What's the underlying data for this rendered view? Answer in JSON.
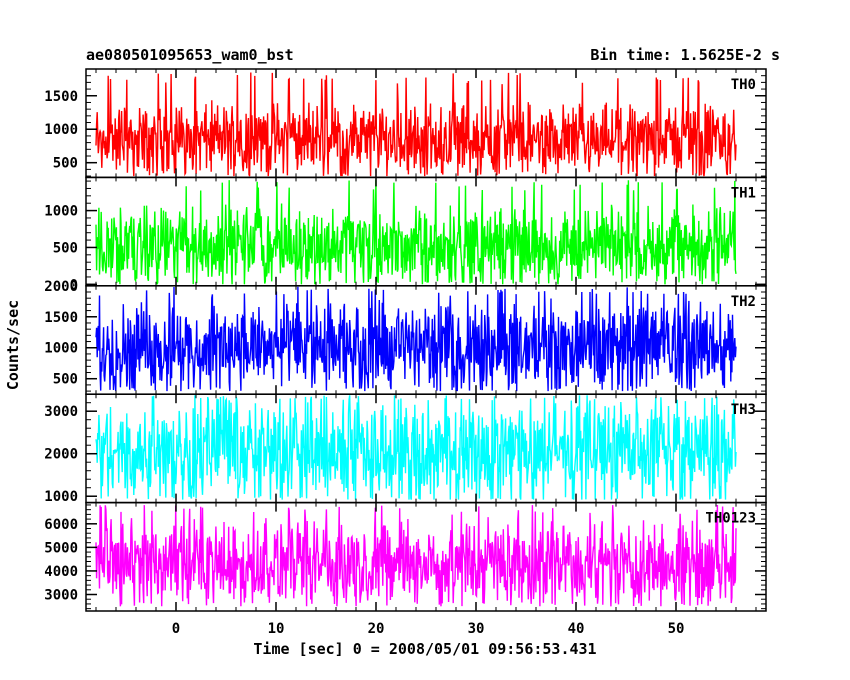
{
  "chart_data": {
    "type": "line",
    "title": "ae080501095653_wam0_bst",
    "subtitle": "Bin time: 1.5625E-2 s",
    "xlabel": "Time [sec] 0 = 2008/05/01 09:56:53.431",
    "ylabel": "Counts/sec",
    "xlim": [
      -9,
      59
    ],
    "x_range_data": [
      -8,
      56
    ],
    "x_ticks": [
      0,
      10,
      20,
      30,
      40,
      50
    ],
    "x_tick_labels": [
      "0",
      "10",
      "20",
      "30",
      "40",
      "50"
    ],
    "grid": false,
    "bin_time_s": 0.015625,
    "panels": [
      {
        "name": "TH0",
        "color": "#ff0000",
        "ylim": [
          280,
          1900
        ],
        "yticks": [
          500,
          1000,
          1500
        ],
        "ytick_labels": [
          "500",
          "1000",
          "1500"
        ],
        "band_low": 450,
        "band_high": 1250,
        "min": 300,
        "max": 1850,
        "mean": 830
      },
      {
        "name": "TH1",
        "color": "#00ff00",
        "ylim": [
          -20,
          1450
        ],
        "yticks": [
          0,
          500,
          1000
        ],
        "ytick_labels": [
          "0",
          "500",
          "1000"
        ],
        "band_low": 150,
        "band_high": 900,
        "min": 0,
        "max": 1420,
        "mean": 520
      },
      {
        "name": "TH2",
        "color": "#0000ff",
        "ylim": [
          250,
          2000
        ],
        "yticks": [
          500,
          1000,
          1500,
          2000
        ],
        "ytick_labels": [
          "500",
          "1000",
          "1500",
          "2000"
        ],
        "band_low": 500,
        "band_high": 1550,
        "min": 300,
        "max": 1990,
        "mean": 1020
      },
      {
        "name": "TH3",
        "color": "#00ffff",
        "ylim": [
          850,
          3400
        ],
        "yticks": [
          1000,
          2000,
          3000
        ],
        "ytick_labels": [
          "1000",
          "2000",
          "3000"
        ],
        "band_low": 1200,
        "band_high": 2950,
        "min": 920,
        "max": 3380,
        "mean": 2050
      },
      {
        "name": "TH0123",
        "color": "#ff00ff",
        "ylim": [
          2300,
          6900
        ],
        "yticks": [
          3000,
          4000,
          5000,
          6000
        ],
        "ytick_labels": [
          "3000",
          "4000",
          "5000",
          "6000"
        ],
        "band_low": 3000,
        "band_high": 5700,
        "min": 2500,
        "max": 6800,
        "mean": 4300
      }
    ]
  }
}
